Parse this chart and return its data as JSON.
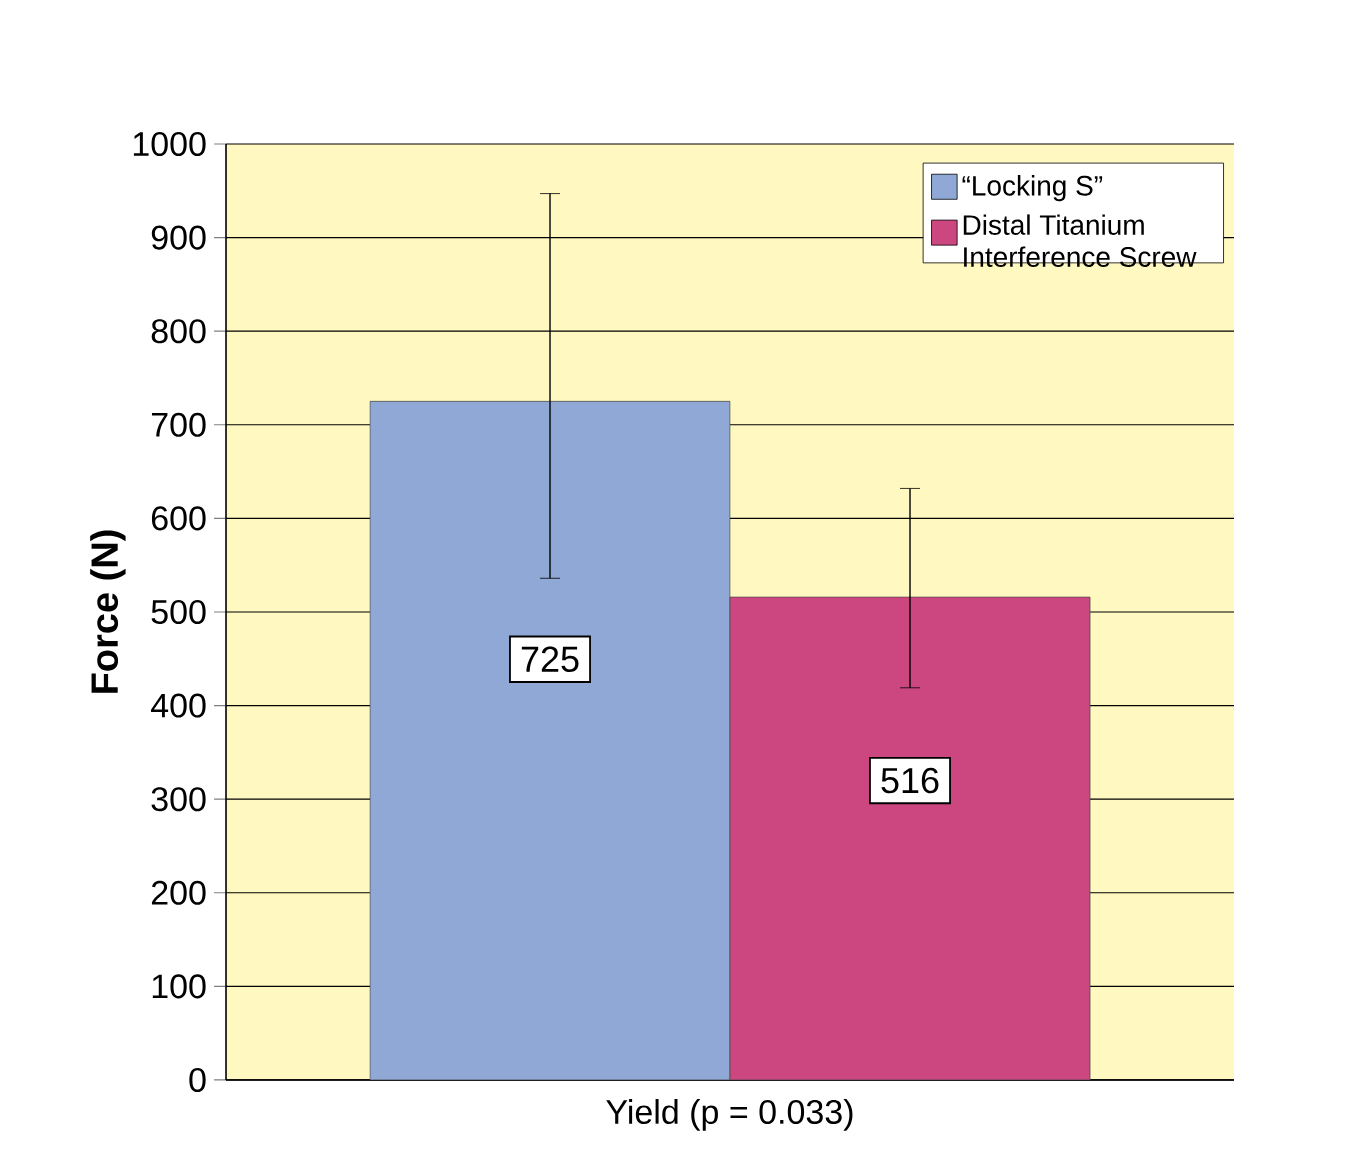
{
  "chart_data": {
    "type": "bar",
    "ylabel": "Force (N)",
    "categories": [
      "Yield (p = 0.033)"
    ],
    "series": [
      {
        "name": "“Locking S”",
        "color": "#8fa8d6",
        "values": [
          725
        ],
        "errors": [
          [
            536,
            947
          ]
        ]
      },
      {
        "name": "Distal Titanium Interference Screw",
        "color": "#cc4680",
        "values": [
          516
        ],
        "errors": [
          [
            419,
            632
          ]
        ]
      }
    ],
    "ylim": [
      0,
      1000
    ],
    "yticks": [
      0,
      100,
      200,
      300,
      400,
      500,
      600,
      700,
      800,
      900,
      1000
    ],
    "grid": "y",
    "legend": "top right",
    "data_labels": true
  }
}
